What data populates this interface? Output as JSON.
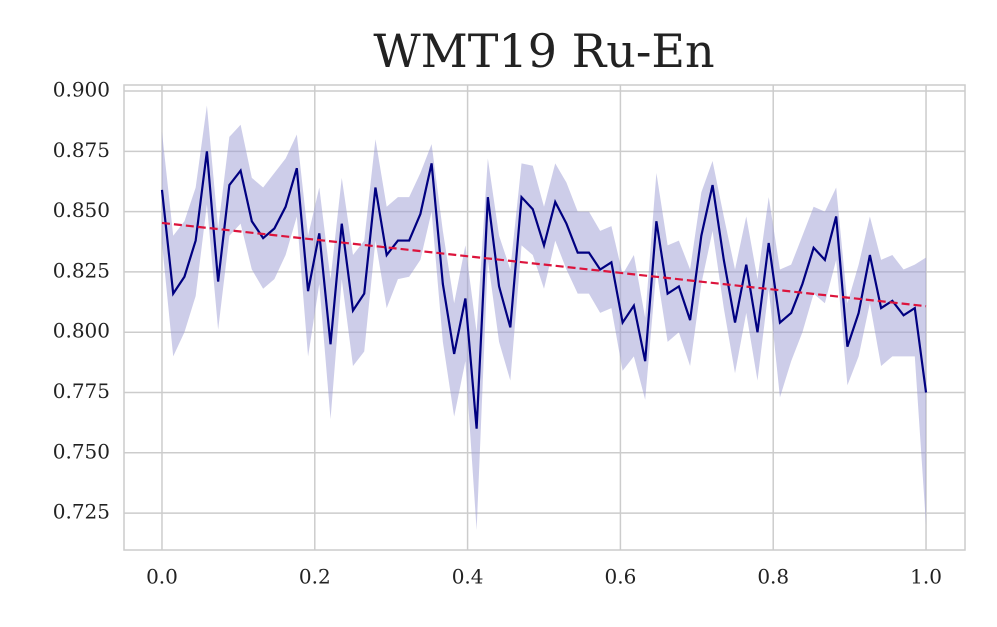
{
  "chart_data": {
    "type": "line",
    "title": "WMT19 Ru-En",
    "x": [
      0,
      0.0147,
      0.0294,
      0.0441,
      0.0588,
      0.0735,
      0.0882,
      0.1029,
      0.1176,
      0.1324,
      0.1471,
      0.1618,
      0.1765,
      0.1912,
      0.2059,
      0.2206,
      0.2353,
      0.25,
      0.2647,
      0.2794,
      0.2941,
      0.3088,
      0.3235,
      0.3382,
      0.3529,
      0.3676,
      0.3824,
      0.3971,
      0.4118,
      0.4265,
      0.4412,
      0.4559,
      0.4706,
      0.4853,
      0.5,
      0.5147,
      0.5294,
      0.5441,
      0.5588,
      0.5735,
      0.5882,
      0.6029,
      0.6176,
      0.6324,
      0.6471,
      0.6618,
      0.6765,
      0.6912,
      0.7059,
      0.7206,
      0.7353,
      0.75,
      0.7647,
      0.7794,
      0.7941,
      0.8088,
      0.8235,
      0.8382,
      0.8529,
      0.8676,
      0.8824,
      0.8971,
      0.9118,
      0.9265,
      0.9412,
      0.9559,
      0.9706,
      0.9853,
      1
    ],
    "series": [
      {
        "color": "#000080",
        "band_color": "#9b9bd4",
        "values": [
          0.859,
          0.816,
          0.823,
          0.838,
          0.875,
          0.821,
          0.861,
          0.867,
          0.846,
          0.839,
          0.843,
          0.852,
          0.868,
          0.817,
          0.841,
          0.795,
          0.845,
          0.809,
          0.816,
          0.86,
          0.832,
          0.838,
          0.838,
          0.849,
          0.87,
          0.82,
          0.791,
          0.814,
          0.76,
          0.856,
          0.819,
          0.802,
          0.856,
          0.851,
          0.836,
          0.854,
          0.845,
          0.833,
          0.833,
          0.826,
          0.829,
          0.804,
          0.811,
          0.788,
          0.846,
          0.816,
          0.819,
          0.805,
          0.84,
          0.861,
          0.83,
          0.804,
          0.828,
          0.8,
          0.837,
          0.804,
          0.808,
          0.82,
          0.835,
          0.83,
          0.848,
          0.794,
          0.808,
          0.832,
          0.81,
          0.813,
          0.807,
          0.81,
          0.775
        ],
        "lower": [
          0.837,
          0.79,
          0.8,
          0.815,
          0.853,
          0.801,
          0.84,
          0.845,
          0.826,
          0.818,
          0.822,
          0.832,
          0.848,
          0.79,
          0.82,
          0.764,
          0.822,
          0.786,
          0.792,
          0.838,
          0.81,
          0.822,
          0.823,
          0.83,
          0.85,
          0.796,
          0.765,
          0.788,
          0.718,
          0.83,
          0.796,
          0.78,
          0.836,
          0.832,
          0.818,
          0.838,
          0.826,
          0.816,
          0.816,
          0.808,
          0.81,
          0.784,
          0.79,
          0.772,
          0.826,
          0.796,
          0.8,
          0.786,
          0.82,
          0.842,
          0.81,
          0.783,
          0.808,
          0.78,
          0.818,
          0.773,
          0.788,
          0.8,
          0.816,
          0.812,
          0.83,
          0.778,
          0.79,
          0.812,
          0.786,
          0.79,
          0.79,
          0.79,
          0.72
        ],
        "upper": [
          0.883,
          0.84,
          0.846,
          0.86,
          0.894,
          0.843,
          0.881,
          0.886,
          0.864,
          0.86,
          0.866,
          0.872,
          0.882,
          0.84,
          0.86,
          0.822,
          0.864,
          0.832,
          0.838,
          0.88,
          0.852,
          0.856,
          0.856,
          0.866,
          0.878,
          0.842,
          0.812,
          0.836,
          0.8,
          0.872,
          0.84,
          0.826,
          0.87,
          0.869,
          0.852,
          0.87,
          0.862,
          0.85,
          0.85,
          0.842,
          0.844,
          0.824,
          0.832,
          0.806,
          0.866,
          0.836,
          0.838,
          0.826,
          0.858,
          0.871,
          0.848,
          0.826,
          0.848,
          0.822,
          0.856,
          0.826,
          0.828,
          0.84,
          0.852,
          0.85,
          0.86,
          0.812,
          0.828,
          0.848,
          0.83,
          0.832,
          0.826,
          0.828,
          0.831
        ]
      },
      {
        "color": "#dc143c",
        "linestyle": "dashed",
        "x": [
          0,
          1
        ],
        "values": [
          0.8453,
          0.8108
        ]
      }
    ],
    "xlim": [
      -0.0497,
      1.051
    ],
    "ylim": [
      0.7097,
      0.9025
    ],
    "xticks": [
      {
        "value": 0,
        "label": "0.0"
      },
      0.2,
      0.4,
      0.6,
      0.8,
      {
        "value": 1,
        "label": "1.0"
      }
    ],
    "yticks": [
      {
        "value": 0.725,
        "label": "0.725"
      },
      {
        "value": 0.75,
        "label": "0.750"
      },
      {
        "value": 0.775,
        "label": "0.775"
      },
      {
        "value": 0.8,
        "label": "0.800"
      },
      {
        "value": 0.825,
        "label": "0.825"
      },
      {
        "value": 0.85,
        "label": "0.850"
      },
      {
        "value": 0.875,
        "label": "0.875"
      },
      {
        "value": 0.9,
        "label": "0.900"
      }
    ],
    "grid": true
  }
}
